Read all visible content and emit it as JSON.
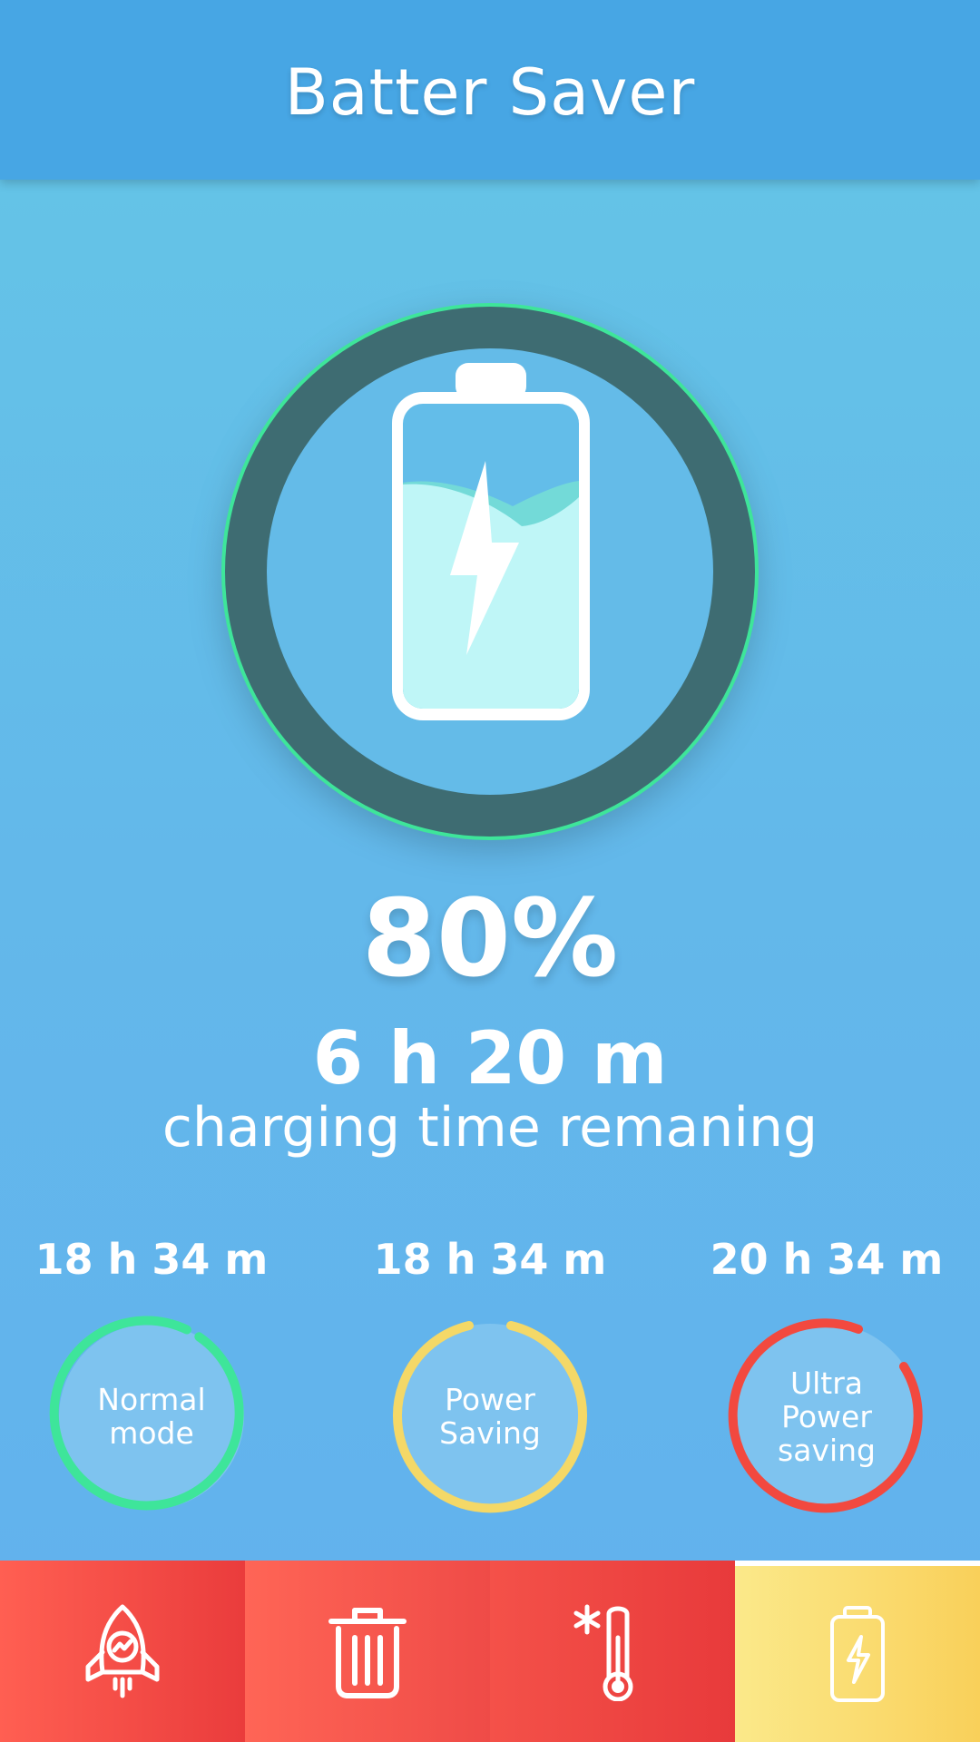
{
  "header": {
    "title": "Batter Saver"
  },
  "battery": {
    "level_percent": 80,
    "percent_label": "80%",
    "time_remaining": "6 h 20 m",
    "time_label": "charging time remaning"
  },
  "modes": [
    {
      "time": "18 h 34 m",
      "label_lines": [
        "Normal",
        "mode"
      ],
      "color": "#3ee59a"
    },
    {
      "time": "18 h 34 m",
      "label_lines": [
        "Power",
        "Saving"
      ],
      "color": "#f4d867"
    },
    {
      "time": "20 h 34 m",
      "label_lines": [
        "Ultra",
        "Power",
        "saving"
      ],
      "color": "#f2493f"
    }
  ],
  "colors": {
    "header": "#47a6e4",
    "gauge_ring": "#3e6c72",
    "gauge_glow": "#3ee59a",
    "nav_red": "#f04a45",
    "nav_yellow": "#f9d96b"
  },
  "nav": [
    {
      "icon": "rocket-boost-icon"
    },
    {
      "icon": "trash-clean-icon"
    },
    {
      "icon": "thermometer-cooler-icon"
    },
    {
      "icon": "battery-saver-icon"
    }
  ]
}
